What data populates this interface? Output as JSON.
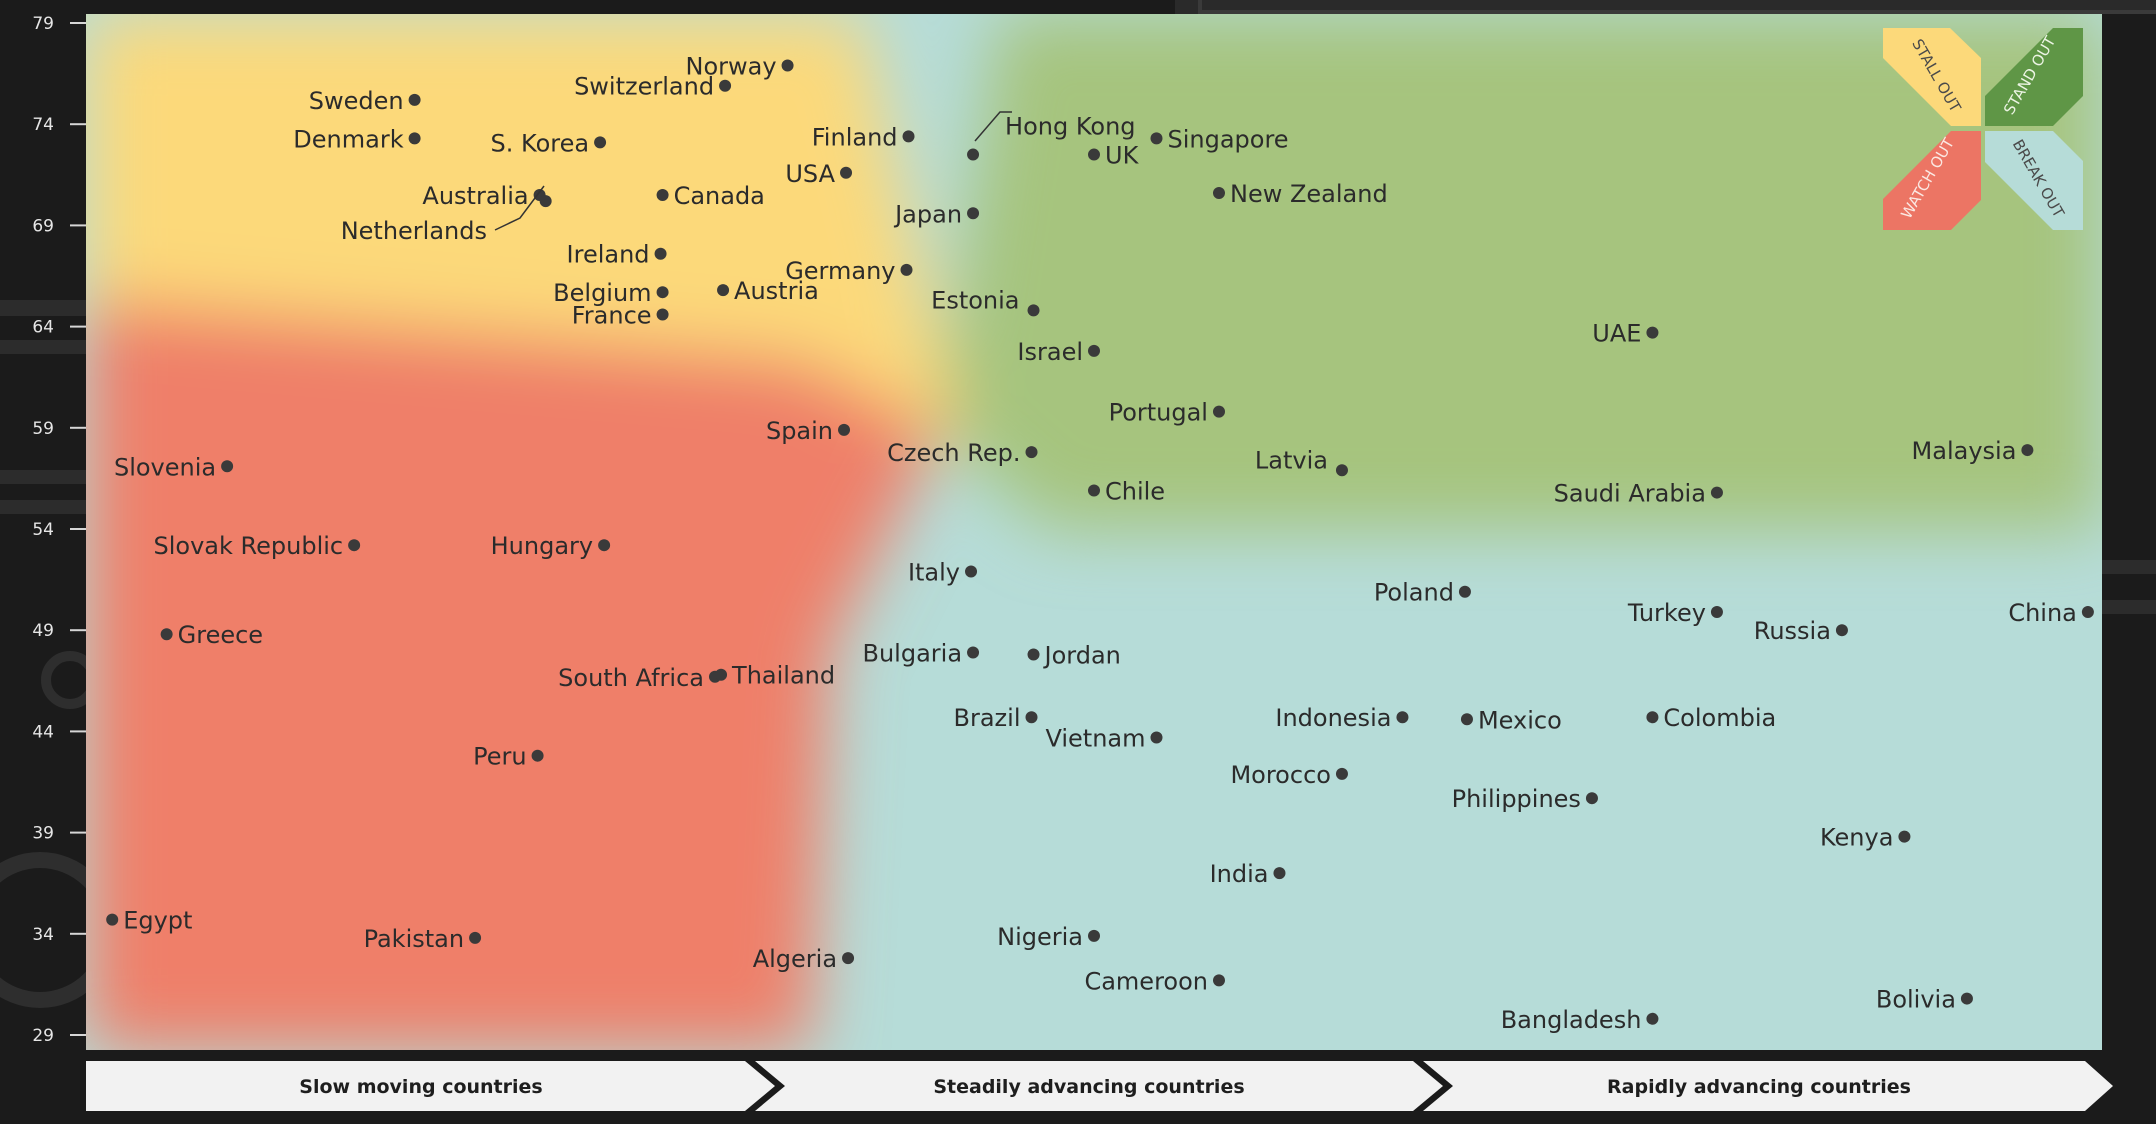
{
  "colors": {
    "background": "#1b1b1b",
    "stall_out": "#fcd97a",
    "stand_out": "#a6c47e",
    "watch_out": "#ef7f69",
    "break_out": "#b6dcd8",
    "point": "#3a3a3a",
    "label": "#2b2b2b",
    "axis_text": "#e6e6e6",
    "banner": "#f2f2f2"
  },
  "legend": {
    "stall_out": "STALL OUT",
    "stand_out": "STAND OUT",
    "watch_out": "WATCH OUT",
    "break_out": "BREAK OUT"
  },
  "banners": [
    "Slow moving countries",
    "Steadily advancing countries",
    "Rapidly advancing countries"
  ],
  "chart_data": {
    "type": "scatter",
    "title": "",
    "xlabel": "",
    "ylabel": "",
    "x_axis_shown": false,
    "xlim": [
      0,
      100
    ],
    "ylim": [
      29,
      79
    ],
    "yticks": [
      79,
      74,
      69,
      64,
      59,
      54,
      49,
      44,
      39,
      34,
      29
    ],
    "grid": false,
    "quadrants": [
      "STALL OUT",
      "STAND OUT",
      "WATCH OUT",
      "BREAK OUT"
    ],
    "points": [
      {
        "name": "Sweden",
        "x": 16.3,
        "y": 75.2
      },
      {
        "name": "Denmark",
        "x": 16.3,
        "y": 73.3
      },
      {
        "name": "S. Korea",
        "x": 25.5,
        "y": 73.1
      },
      {
        "name": "Switzerland",
        "x": 31.7,
        "y": 75.9
      },
      {
        "name": "Norway",
        "x": 34.8,
        "y": 76.9
      },
      {
        "name": "Finland",
        "x": 40.8,
        "y": 73.4
      },
      {
        "name": "USA",
        "x": 37.7,
        "y": 71.6
      },
      {
        "name": "Hong Kong",
        "x": 44.0,
        "y": 72.5
      },
      {
        "name": "UK",
        "x": 50.0,
        "y": 72.5
      },
      {
        "name": "Singapore",
        "x": 53.1,
        "y": 73.3
      },
      {
        "name": "New Zealand",
        "x": 56.2,
        "y": 70.6
      },
      {
        "name": "Australia",
        "x": 22.5,
        "y": 70.5
      },
      {
        "name": "Netherlands",
        "x": 22.8,
        "y": 70.2
      },
      {
        "name": "Canada",
        "x": 28.6,
        "y": 70.5
      },
      {
        "name": "Japan",
        "x": 44.0,
        "y": 69.6
      },
      {
        "name": "Ireland",
        "x": 28.5,
        "y": 67.6
      },
      {
        "name": "Germany",
        "x": 40.7,
        "y": 66.8
      },
      {
        "name": "Belgium",
        "x": 28.6,
        "y": 65.7
      },
      {
        "name": "Austria",
        "x": 31.6,
        "y": 65.8
      },
      {
        "name": "France",
        "x": 28.6,
        "y": 64.6
      },
      {
        "name": "Estonia",
        "x": 47.0,
        "y": 64.8
      },
      {
        "name": "Israel",
        "x": 50.0,
        "y": 62.8
      },
      {
        "name": "UAE",
        "x": 77.7,
        "y": 63.7
      },
      {
        "name": "Portugal",
        "x": 56.2,
        "y": 59.8
      },
      {
        "name": "Spain",
        "x": 37.6,
        "y": 58.9
      },
      {
        "name": "Czech Rep.",
        "x": 46.9,
        "y": 57.8
      },
      {
        "name": "Slovenia",
        "x": 7.0,
        "y": 57.1
      },
      {
        "name": "Latvia",
        "x": 62.3,
        "y": 56.9
      },
      {
        "name": "Chile",
        "x": 50.0,
        "y": 55.9
      },
      {
        "name": "Saudi Arabia",
        "x": 80.9,
        "y": 55.8
      },
      {
        "name": "Malaysia",
        "x": 96.3,
        "y": 57.9
      },
      {
        "name": "Slovak Republic",
        "x": 13.3,
        "y": 53.2
      },
      {
        "name": "Hungary",
        "x": 25.7,
        "y": 53.2
      },
      {
        "name": "Italy",
        "x": 43.9,
        "y": 51.9
      },
      {
        "name": "Poland",
        "x": 68.4,
        "y": 50.9
      },
      {
        "name": "Turkey",
        "x": 80.9,
        "y": 49.9
      },
      {
        "name": "Russia",
        "x": 87.1,
        "y": 49.0
      },
      {
        "name": "China",
        "x": 99.3,
        "y": 49.9
      },
      {
        "name": "Greece",
        "x": 4.0,
        "y": 48.8
      },
      {
        "name": "Bulgaria",
        "x": 44.0,
        "y": 47.9
      },
      {
        "name": "Jordan",
        "x": 47.0,
        "y": 47.8
      },
      {
        "name": "South Africa",
        "x": 31.2,
        "y": 46.7
      },
      {
        "name": "Thailand",
        "x": 31.5,
        "y": 46.8
      },
      {
        "name": "Brazil",
        "x": 46.9,
        "y": 44.7
      },
      {
        "name": "Vietnam",
        "x": 53.1,
        "y": 43.7
      },
      {
        "name": "Indonesia",
        "x": 65.3,
        "y": 44.7
      },
      {
        "name": "Mexico",
        "x": 68.5,
        "y": 44.6
      },
      {
        "name": "Colombia",
        "x": 77.7,
        "y": 44.7
      },
      {
        "name": "Peru",
        "x": 22.4,
        "y": 42.8
      },
      {
        "name": "Morocco",
        "x": 62.3,
        "y": 41.9
      },
      {
        "name": "Philippines",
        "x": 74.7,
        "y": 40.7
      },
      {
        "name": "Kenya",
        "x": 90.2,
        "y": 38.8
      },
      {
        "name": "India",
        "x": 59.2,
        "y": 37.0
      },
      {
        "name": "Egypt",
        "x": 1.3,
        "y": 34.7
      },
      {
        "name": "Pakistan",
        "x": 19.3,
        "y": 33.8
      },
      {
        "name": "Nigeria",
        "x": 50.0,
        "y": 33.9
      },
      {
        "name": "Algeria",
        "x": 37.8,
        "y": 32.8
      },
      {
        "name": "Cameroon",
        "x": 56.2,
        "y": 31.7
      },
      {
        "name": "Bangladesh",
        "x": 77.7,
        "y": 29.8
      },
      {
        "name": "Bolivia",
        "x": 93.3,
        "y": 30.8
      }
    ]
  }
}
